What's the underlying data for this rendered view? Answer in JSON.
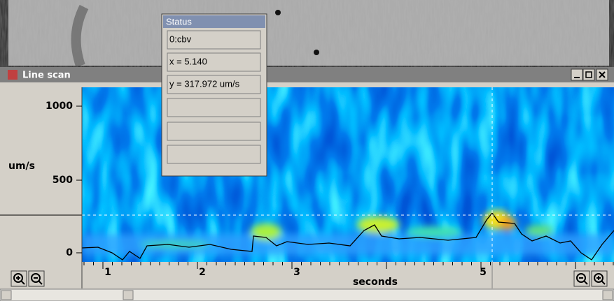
{
  "window": {
    "title": "Line scan"
  },
  "status": {
    "title": "Status",
    "fields": [
      "0:cbv",
      "x = 5.140",
      "y = 317.972 um/s"
    ]
  },
  "plot": {
    "y_axis_label": "um/s",
    "y_tick_labels": [
      "1000",
      "500",
      "0"
    ],
    "x_tick_labels": [
      "1",
      "2",
      "3",
      "5"
    ],
    "x_axis_label": "seconds"
  }
}
